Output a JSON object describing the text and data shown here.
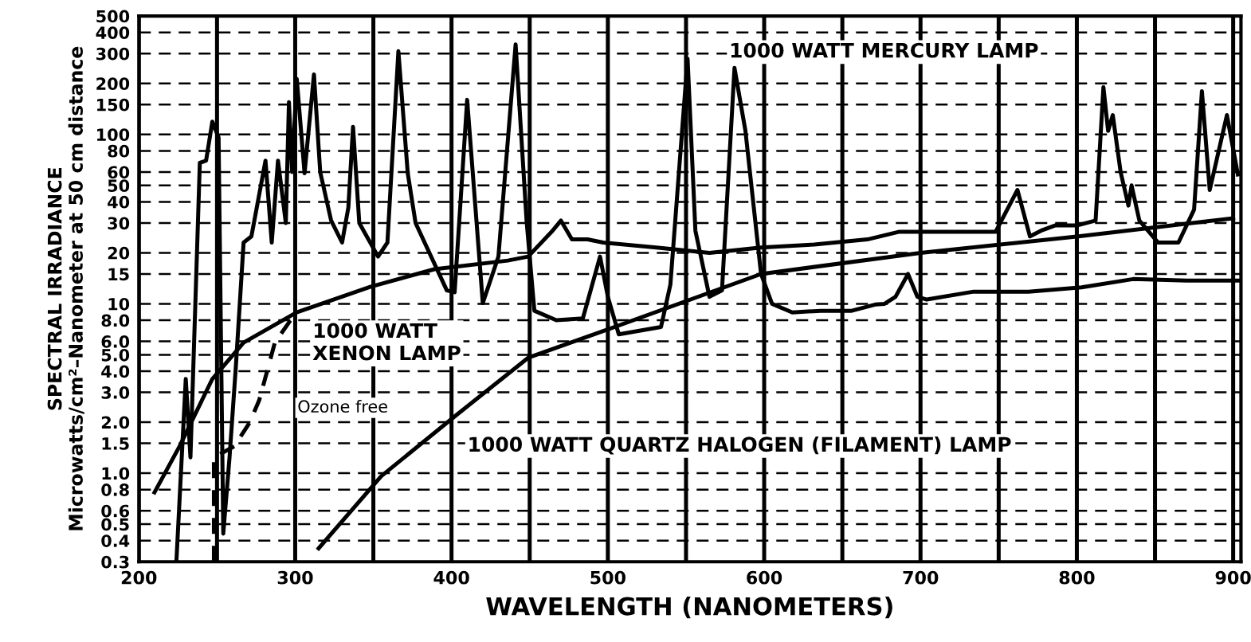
{
  "chart_data": {
    "type": "line",
    "xlabel": "WAVELENGTH (NANOMETERS)",
    "ylabel": "SPECTRAL IRRADIANCE\nMicrowatts/cm²–Nanometer at 50 cm distance",
    "log": "y",
    "grid": true,
    "xlim": [
      200,
      905
    ],
    "xticks": [
      200,
      {
        "value": 250,
        "label": null
      },
      300,
      {
        "value": 350,
        "label": null
      },
      400,
      {
        "value": 450,
        "label": null
      },
      500,
      {
        "value": 550,
        "label": null
      },
      600,
      {
        "value": 650,
        "label": null
      },
      700,
      {
        "value": 750,
        "label": null
      },
      800,
      {
        "value": 850,
        "label": null
      },
      900
    ],
    "ylim": [
      0.3,
      500
    ],
    "yticks": [
      {
        "value": 0.3,
        "label": "0.3"
      },
      {
        "value": 0.4,
        "label": "0.4"
      },
      {
        "value": 0.5,
        "label": "0.5"
      },
      {
        "value": 0.6,
        "label": "0.6"
      },
      {
        "value": 0.8,
        "label": "0.8"
      },
      {
        "value": 1,
        "label": "1.0"
      },
      {
        "value": 1.5,
        "label": "1.5"
      },
      {
        "value": 2,
        "label": "2.0"
      },
      {
        "value": 3,
        "label": "3.0"
      },
      {
        "value": 4,
        "label": "4.0"
      },
      {
        "value": 5,
        "label": "5.0"
      },
      {
        "value": 6,
        "label": "6.0"
      },
      {
        "value": 8,
        "label": "8.0"
      },
      10,
      15,
      20,
      30,
      40,
      50,
      60,
      80,
      100,
      150,
      200,
      300,
      400,
      500
    ],
    "series": [
      {
        "name": "1000 WATT MERCURY LAMP",
        "color": "#000000",
        "x": [
          224,
          230,
          233,
          239,
          243,
          247,
          251,
          254,
          258,
          262,
          267,
          272,
          281,
          285,
          289,
          294,
          296,
          298,
          301,
          306,
          312,
          316,
          323,
          330,
          334,
          337,
          341,
          353,
          359,
          366,
          372,
          377,
          397,
          402,
          410,
          420,
          430,
          441,
          448,
          453,
          467,
          484,
          495,
          500,
          507,
          534,
          540,
          551,
          556,
          565,
          573,
          581,
          588,
          598,
          605,
          618,
          636,
          656,
          671,
          677,
          684,
          692,
          698,
          704,
          734,
          769,
          803,
          836,
          870,
          903
        ],
        "values": [
          0.3,
          3.6,
          1.24,
          68,
          70,
          119,
          96,
          0.44,
          1.24,
          4.2,
          23,
          25,
          70,
          23,
          70,
          30,
          155,
          60,
          213,
          59,
          226,
          60,
          31,
          23,
          37,
          111,
          30,
          19,
          23,
          310,
          59,
          30,
          12,
          11.7,
          160,
          10.1,
          19,
          340,
          31,
          9.1,
          8,
          8.2,
          19,
          11,
          6.6,
          7.3,
          13,
          280,
          27,
          11,
          12,
          247,
          105,
          15,
          10,
          8.9,
          9.1,
          9.1,
          9.9,
          10,
          11,
          15,
          11,
          10.6,
          11.8,
          11.8,
          12.5,
          14,
          13.7,
          13.7
        ]
      },
      {
        "name": "1000 WATT\nXENON LAMP",
        "color": "#000000",
        "x": [
          210,
          226,
          247,
          267,
          301,
          348,
          389,
          436,
          449,
          464,
          470,
          477,
          487,
          497,
          531,
          565,
          598,
          632,
          666,
          686,
          724,
          748,
          762,
          770,
          777,
          786,
          800,
          812,
          817,
          820,
          823,
          828,
          833,
          835,
          840,
          852,
          865,
          875,
          880,
          885,
          896,
          903
        ],
        "values": [
          0.77,
          1.44,
          3.6,
          5.9,
          8.9,
          12.6,
          16,
          18,
          19,
          26.6,
          31,
          24,
          24,
          23,
          21.5,
          20,
          21.5,
          22.4,
          24,
          26.6,
          26.6,
          26.6,
          47,
          25,
          27,
          29,
          29,
          31,
          190,
          105,
          130,
          60,
          38,
          50,
          31,
          23,
          23,
          36,
          180,
          47,
          130,
          58
        ]
      },
      {
        "name": "Ozone free",
        "color": "#000000",
        "line_style": "dashed",
        "x": [
          248,
          248,
          261,
          271,
          277,
          287,
          299
        ],
        "values": [
          0.3,
          1.24,
          1.44,
          2.0,
          2.7,
          5.9,
          8.5
        ]
      },
      {
        "name": "1000 WATT QUARTZ HALOGEN (FILAMENT) LAMP",
        "color": "#000000",
        "x": [
          315,
          355,
          403,
          449,
          497,
          598,
          700,
          801,
          900
        ],
        "values": [
          0.36,
          0.96,
          2.2,
          4.8,
          6.9,
          15,
          20,
          25,
          32
        ]
      }
    ]
  }
}
